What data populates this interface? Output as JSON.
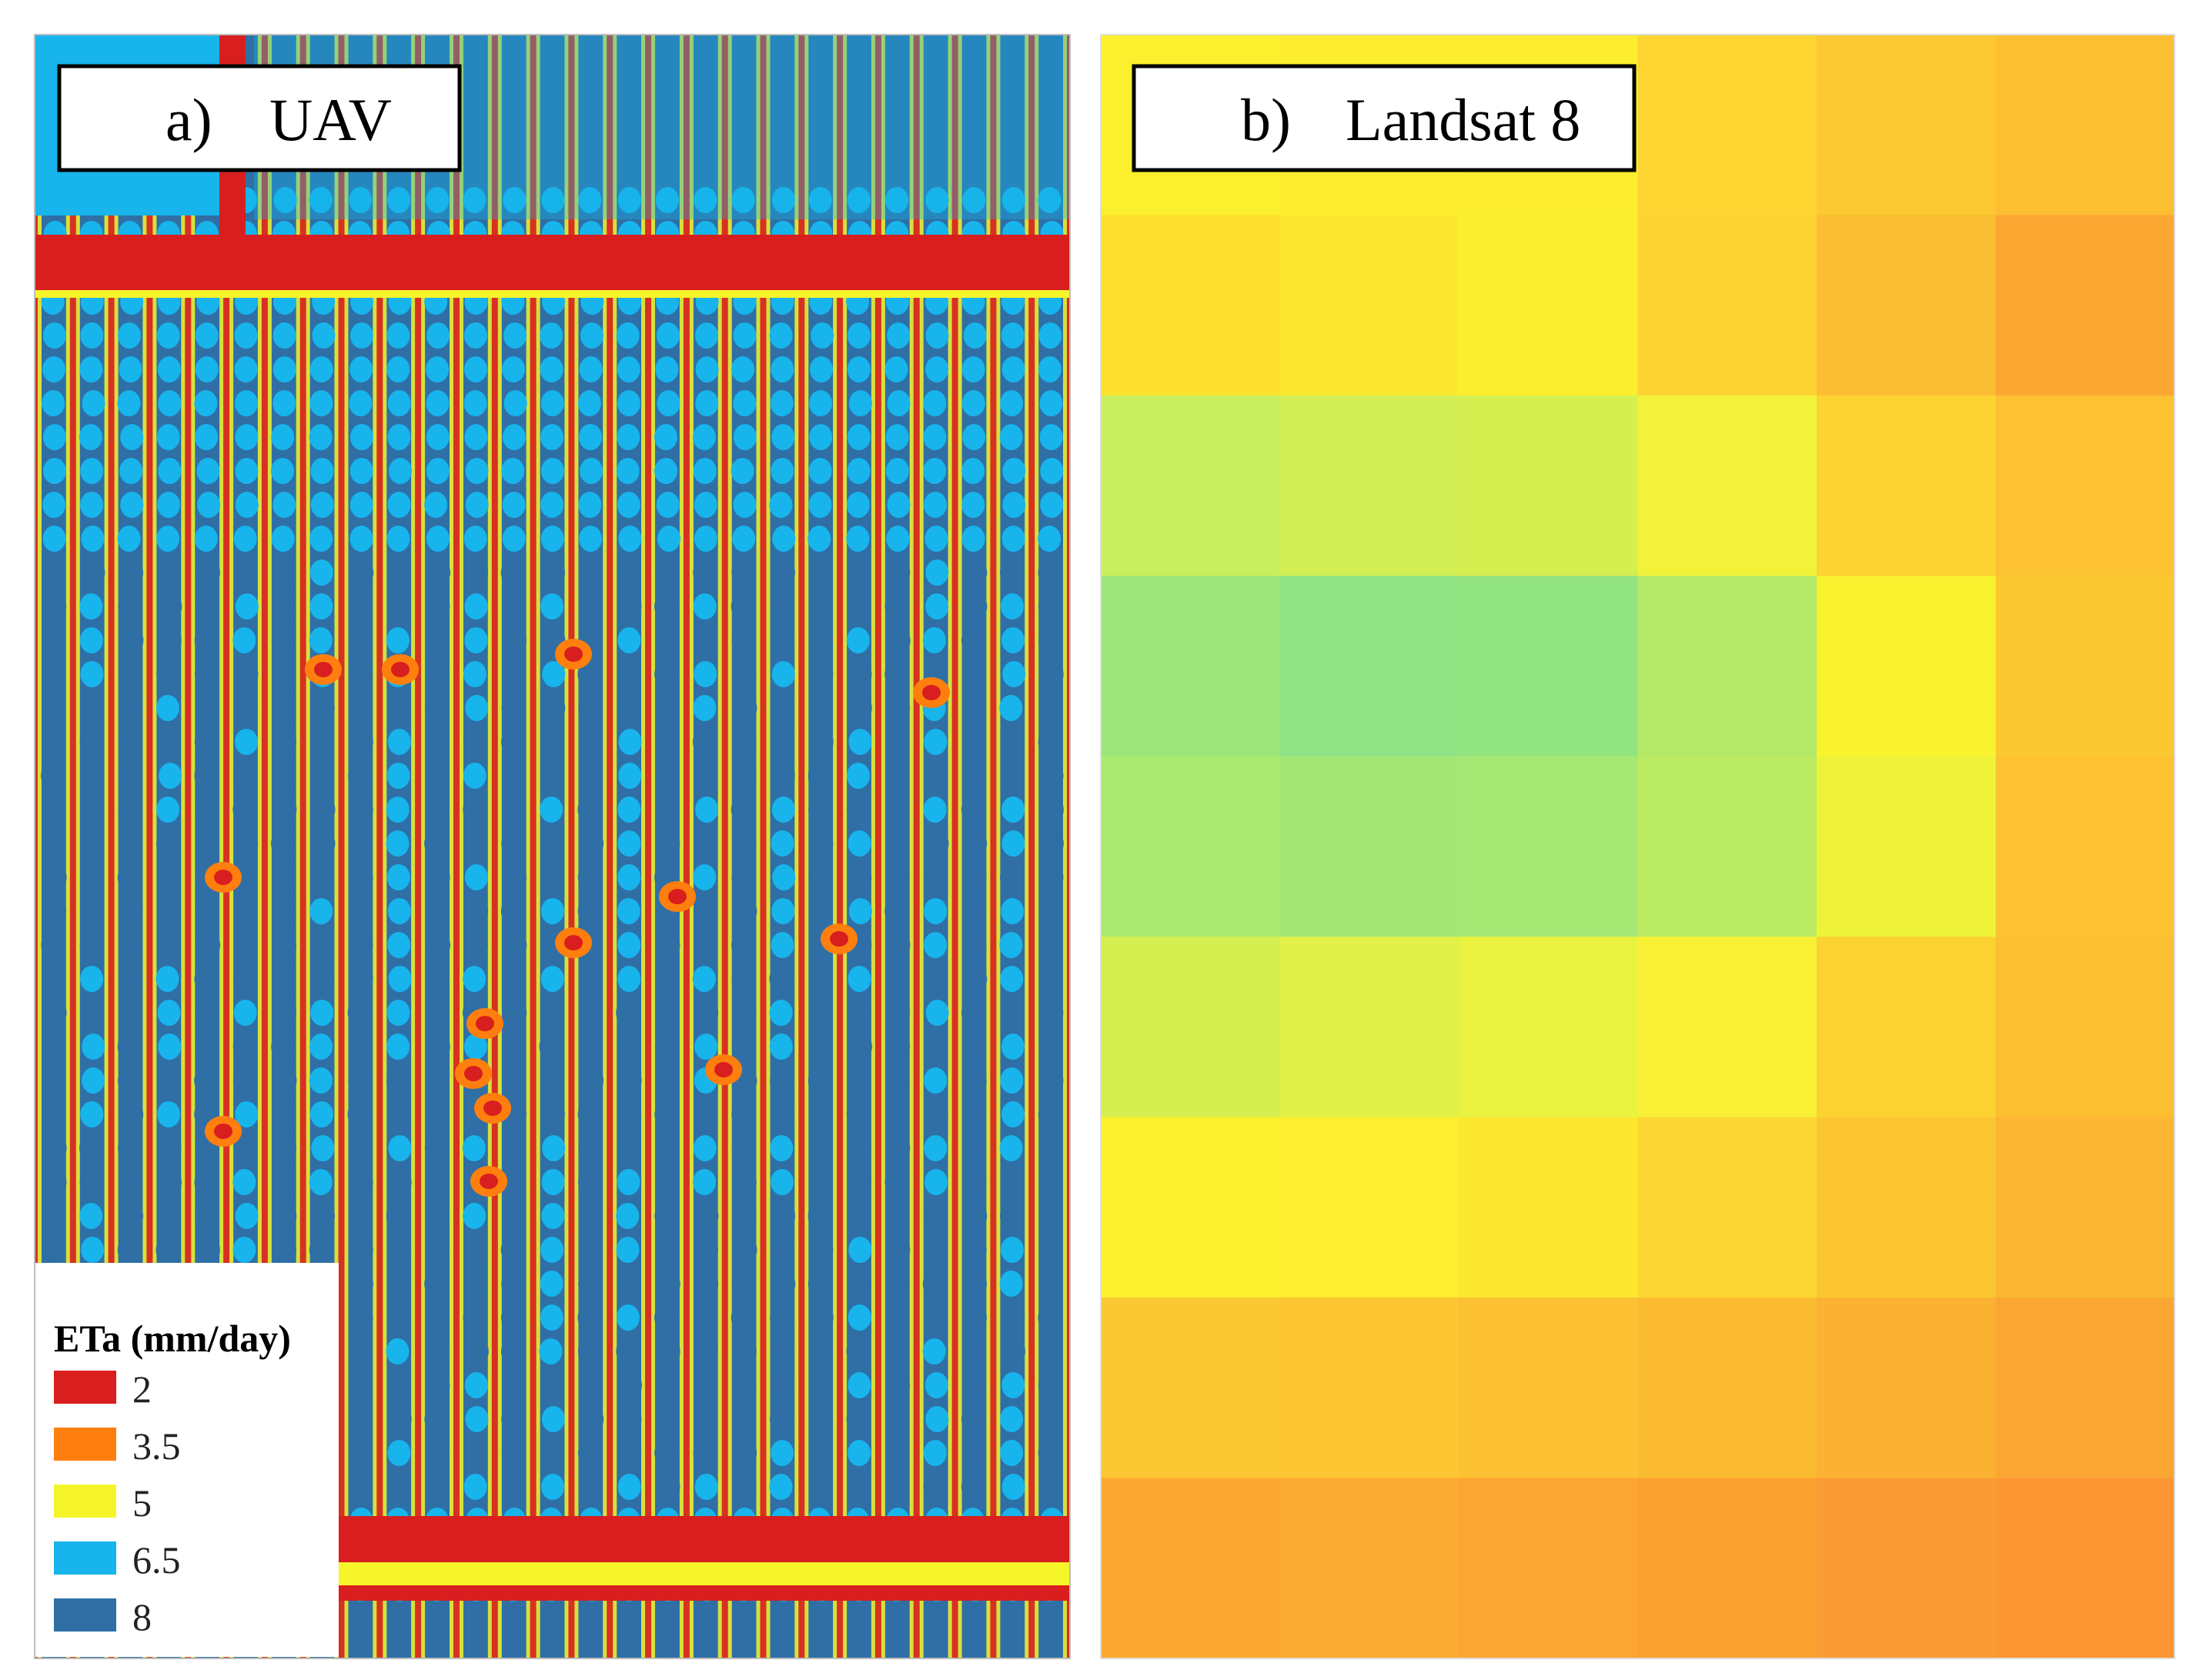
{
  "figure": {
    "panel_a": {
      "letter": "a)",
      "name": "UAV",
      "colors": {
        "very_low": "#d81e1e",
        "low": "#ff7f0e",
        "mid": "#f5f52a",
        "high": "#18b4ec",
        "very_high": "#2f6fa6"
      }
    },
    "panel_b": {
      "letter": "b)",
      "name": "Landsat 8",
      "grid_colors": [
        [
          "#fbef2e",
          "#fcee2e",
          "#fced2f",
          "#fdd530",
          "#fcc932",
          "#fcbf31"
        ],
        [
          "#fde030",
          "#fce92f",
          "#fbee2e",
          "#fdd332",
          "#fbbd31",
          "#fba732"
        ],
        [
          "#c9ee5e",
          "#d4ef55",
          "#d6ef50",
          "#f2f23a",
          "#fcd331",
          "#fcc231"
        ],
        [
          "#9ce67c",
          "#8fe385",
          "#92e481",
          "#b4ea68",
          "#f9f22f",
          "#fcc832"
        ],
        [
          "#aaea70",
          "#a4e775",
          "#a6e873",
          "#bbeb63",
          "#eef33a",
          "#fcc231"
        ],
        [
          "#d6ef50",
          "#e1f148",
          "#eaf240",
          "#f7f034",
          "#fbd232",
          "#fcbf31"
        ],
        [
          "#fcf02e",
          "#fdee2f",
          "#fde830",
          "#fcd632",
          "#fcc632",
          "#fbb632"
        ],
        [
          "#fbc732",
          "#fcc532",
          "#fbc132",
          "#fbbb31",
          "#fbb131",
          "#fba632"
        ],
        [
          "#fba832",
          "#fbab32",
          "#fba533",
          "#fba132",
          "#fb9b33",
          "#fb9632"
        ]
      ]
    },
    "legend": {
      "title": "ETa (mm/day)",
      "items": [
        {
          "label": "2",
          "color": "#d81e1e"
        },
        {
          "label": "3.5",
          "color": "#ff7f0e"
        },
        {
          "label": "5",
          "color": "#f5f52a"
        },
        {
          "label": "6.5",
          "color": "#18b4ec"
        },
        {
          "label": "8",
          "color": "#2f6fa6"
        }
      ]
    }
  }
}
